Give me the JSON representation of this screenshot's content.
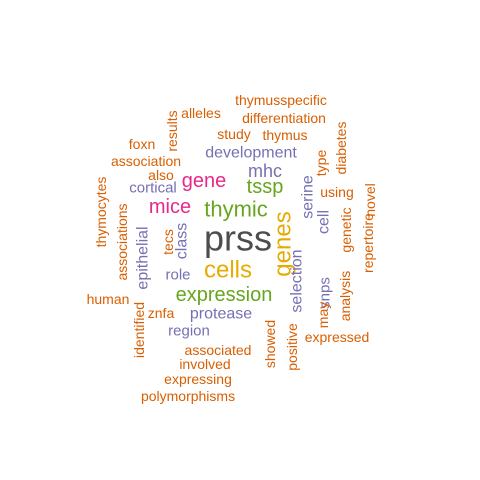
{
  "colors": {
    "background": "#ffffff",
    "orange": "#d95f02",
    "purple": "#7570b3",
    "magenta": "#e7298a",
    "green": "#66a61e",
    "gold": "#e6ab02",
    "gray": "#4d4d4d"
  },
  "words": [
    {
      "key": "prss",
      "text": "prss",
      "color": "gray"
    },
    {
      "key": "genes",
      "text": "genes",
      "color": "gold"
    },
    {
      "key": "cells",
      "text": "cells",
      "color": "gold"
    },
    {
      "key": "thymic",
      "text": "thymic",
      "color": "green"
    },
    {
      "key": "expression",
      "text": "expression",
      "color": "green"
    },
    {
      "key": "mice",
      "text": "mice",
      "color": "magenta"
    },
    {
      "key": "gene",
      "text": "gene",
      "color": "magenta"
    },
    {
      "key": "tssp",
      "text": "tssp",
      "color": "green"
    },
    {
      "key": "mhc",
      "text": "mhc",
      "color": "purple"
    },
    {
      "key": "development",
      "text": "development",
      "color": "purple"
    },
    {
      "key": "protease",
      "text": "protease",
      "color": "purple"
    },
    {
      "key": "class",
      "text": "class",
      "color": "purple"
    },
    {
      "key": "selection",
      "text": "selection",
      "color": "purple"
    },
    {
      "key": "serine",
      "text": "serine",
      "color": "purple"
    },
    {
      "key": "cell",
      "text": "cell",
      "color": "purple"
    },
    {
      "key": "epithelial",
      "text": "epithelial",
      "color": "purple"
    },
    {
      "key": "cortical",
      "text": "cortical",
      "color": "purple"
    },
    {
      "key": "role",
      "text": "role",
      "color": "purple"
    },
    {
      "key": "region",
      "text": "region",
      "color": "purple"
    },
    {
      "key": "snps",
      "text": "snps",
      "color": "purple"
    },
    {
      "key": "thymusspecific",
      "text": "thymusspecific",
      "color": "orange"
    },
    {
      "key": "differentiation",
      "text": "differentiation",
      "color": "orange"
    },
    {
      "key": "alleles",
      "text": "alleles",
      "color": "orange"
    },
    {
      "key": "results",
      "text": "results",
      "color": "orange"
    },
    {
      "key": "study",
      "text": "study",
      "color": "orange"
    },
    {
      "key": "thymus",
      "text": "thymus",
      "color": "orange"
    },
    {
      "key": "diabetes",
      "text": "diabetes",
      "color": "orange"
    },
    {
      "key": "foxn",
      "text": "foxn",
      "color": "orange"
    },
    {
      "key": "association",
      "text": "association",
      "color": "orange"
    },
    {
      "key": "also",
      "text": "also",
      "color": "orange"
    },
    {
      "key": "type",
      "text": "type",
      "color": "orange"
    },
    {
      "key": "using",
      "text": "using",
      "color": "orange"
    },
    {
      "key": "thymocytes",
      "text": "thymocytes",
      "color": "orange"
    },
    {
      "key": "associations",
      "text": "associations",
      "color": "orange"
    },
    {
      "key": "tecs",
      "text": "tecs",
      "color": "orange"
    },
    {
      "key": "genetic",
      "text": "genetic",
      "color": "orange"
    },
    {
      "key": "repertoire",
      "text": "repertoire",
      "color": "orange"
    },
    {
      "key": "novel",
      "text": "novel",
      "color": "orange"
    },
    {
      "key": "analysis",
      "text": "analysis",
      "color": "orange"
    },
    {
      "key": "may",
      "text": "may",
      "color": "orange"
    },
    {
      "key": "human",
      "text": "human",
      "color": "orange"
    },
    {
      "key": "znfa",
      "text": "znfa",
      "color": "orange"
    },
    {
      "key": "identified",
      "text": "identified",
      "color": "orange"
    },
    {
      "key": "showed",
      "text": "showed",
      "color": "orange"
    },
    {
      "key": "positive",
      "text": "positive",
      "color": "orange"
    },
    {
      "key": "expressed",
      "text": "expressed",
      "color": "orange"
    },
    {
      "key": "associated",
      "text": "associated",
      "color": "orange"
    },
    {
      "key": "involved",
      "text": "involved",
      "color": "orange"
    },
    {
      "key": "expressing",
      "text": "expressing",
      "color": "orange"
    },
    {
      "key": "polymorphisms",
      "text": "polymorphisms",
      "color": "orange"
    }
  ]
}
